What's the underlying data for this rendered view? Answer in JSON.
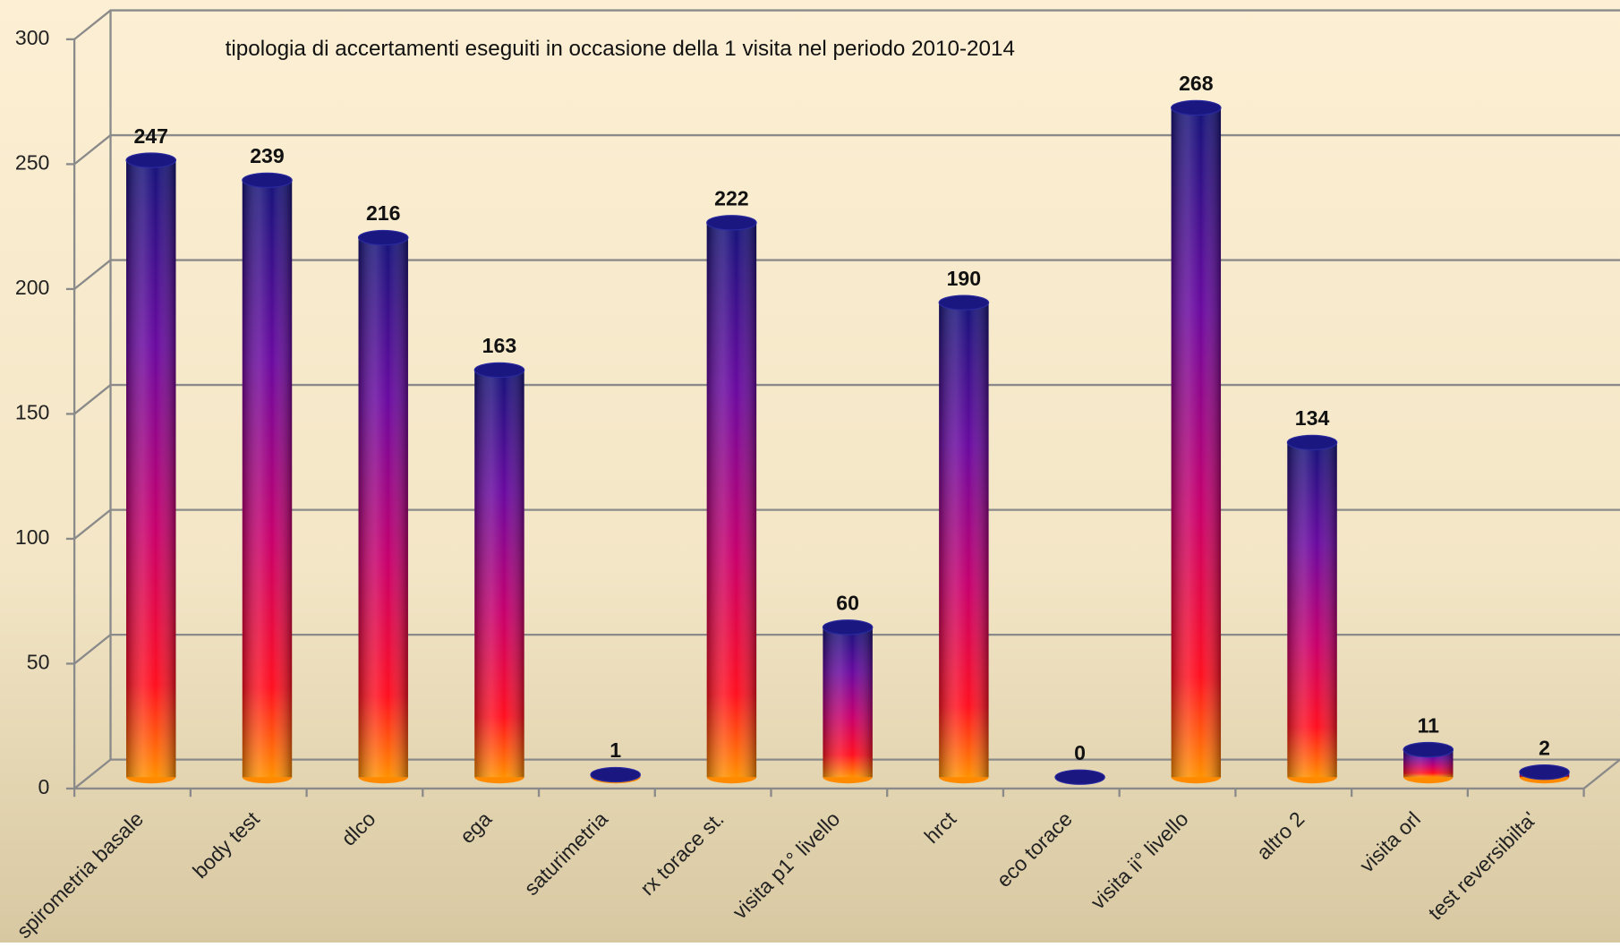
{
  "chart_data": {
    "type": "bar",
    "title": "tipologia di accertamenti  eseguiti  in occasione della 1 visita nel periodo 2010-2014",
    "categories": [
      "spirometria basale",
      "body test",
      "dlco",
      "ega",
      "saturimetria",
      "rx torace st.",
      "visita p1° livello",
      "hrct",
      "eco torace",
      "visita ii° livello",
      "altro 2",
      "visita orl",
      "test reversibilta'"
    ],
    "values": [
      247,
      239,
      216,
      163,
      1,
      222,
      60,
      190,
      0,
      268,
      134,
      11,
      2
    ],
    "ylim": [
      0,
      300
    ],
    "yticks": [
      0,
      50,
      100,
      150,
      200,
      250,
      300
    ],
    "grid": true
  }
}
